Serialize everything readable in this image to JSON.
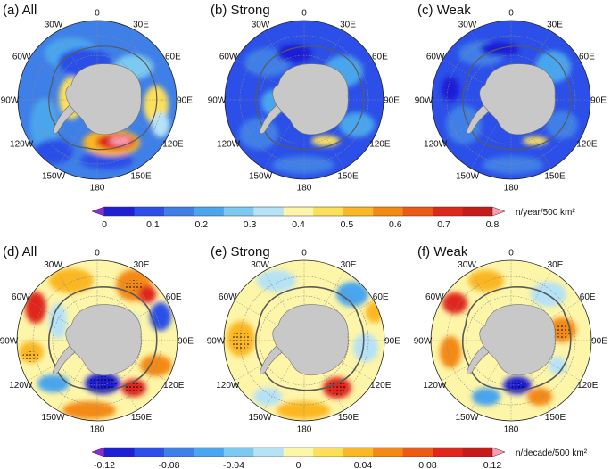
{
  "figure": {
    "panels": [
      {
        "id": "a",
        "title": "(a) All",
        "field": "trend-free density, all events",
        "row": "top"
      },
      {
        "id": "b",
        "title": "(b) Strong",
        "field": "strong events",
        "row": "top"
      },
      {
        "id": "c",
        "title": "(c) Weak",
        "field": "weak events",
        "row": "top"
      },
      {
        "id": "d",
        "title": "(d) All",
        "field": "trend, all events",
        "row": "bottom"
      },
      {
        "id": "e",
        "title": "(e) Strong",
        "field": "trend, strong events",
        "row": "bottom"
      },
      {
        "id": "f",
        "title": "(f) Weak",
        "field": "trend, weak events",
        "row": "bottom"
      }
    ],
    "longitude_labels": [
      "0",
      "30E",
      "60E",
      "90E",
      "120E",
      "150E",
      "180",
      "150W",
      "120W",
      "90W",
      "60W",
      "30W"
    ],
    "colorbars": [
      {
        "id": "density",
        "unit": "n/year/500 km²",
        "tick_labels": [
          "0",
          "0.1",
          "0.2",
          "0.3",
          "0.4",
          "0.5",
          "0.6",
          "0.7",
          "0.8"
        ],
        "colors": [
          "#8a2be2",
          "#1f1fd6",
          "#2b4fe8",
          "#3f7fe8",
          "#4aa6ee",
          "#7cc9f2",
          "#b6e2f6",
          "#fdf5a8",
          "#fde05a",
          "#fbb724",
          "#f48a14",
          "#ec5a14",
          "#e0281a",
          "#c91a1a",
          "#ff9db0"
        ]
      },
      {
        "id": "trend",
        "unit": "n/decade/500 km²",
        "tick_labels": [
          "-0.12",
          "-0.08",
          "-0.04",
          "0",
          "0.04",
          "0.08",
          "0.12"
        ],
        "colors": [
          "#8a2be2",
          "#1f1fd6",
          "#2b4fe8",
          "#3f7fe8",
          "#4aa6ee",
          "#7cc9f2",
          "#b6e2f6",
          "#fdf5a8",
          "#fde05a",
          "#fbb724",
          "#f48a14",
          "#ec5a14",
          "#e0281a",
          "#c91a1a",
          "#ff9db0"
        ]
      }
    ],
    "colors": {
      "land": "#c8c8c8",
      "coast": "#6e6e6e",
      "contour": "#5a5a5a",
      "grid": "#8a8a8a"
    }
  }
}
